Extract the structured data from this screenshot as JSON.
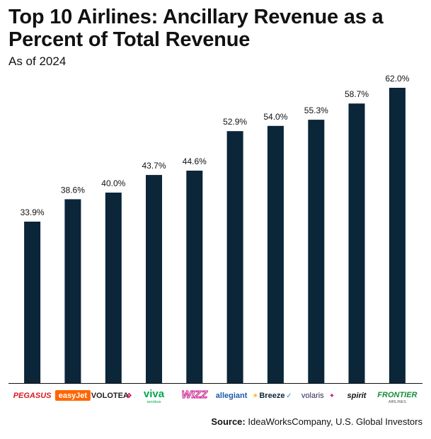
{
  "chart_data": {
    "type": "bar",
    "title": "Top 10 Airlines: Ancillary Revenue as a Percent of Total Revenue",
    "subtitle": "As of 2024",
    "categories": [
      "PEGASUS",
      "easyJet",
      "VOLOTEA",
      "viva aerobus",
      "WIZZ",
      "allegiant",
      "Breeze",
      "volaris",
      "spirit",
      "FRONTIER"
    ],
    "values": [
      33.9,
      38.6,
      40.0,
      43.7,
      44.6,
      52.9,
      54.0,
      55.3,
      58.7,
      62.0
    ],
    "value_labels": [
      "33.9%",
      "38.6%",
      "40.0%",
      "43.7%",
      "44.6%",
      "52.9%",
      "54.0%",
      "55.3%",
      "58.7%",
      "62.0%"
    ],
    "ylim": [
      0,
      62.0
    ],
    "grid": false,
    "legend": "none"
  },
  "colors": {
    "bar": "#0b2539",
    "axis": "#111111"
  },
  "logos": [
    {
      "text": "PEGASUS",
      "color": "#d71920",
      "style": "italic-bold"
    },
    {
      "text": "easyJet",
      "color": "#ffffff",
      "bg": "#ff6600",
      "style": "bold"
    },
    {
      "text": "VOLOTEA",
      "color": "#222222",
      "mark": "❖",
      "markColor": "#d6003a",
      "style": "bold"
    },
    {
      "text": "viva",
      "sub": "aerobus",
      "color": "#00a94f",
      "subColor": "#00a94f",
      "style": "bold"
    },
    {
      "text": "WIZZ",
      "color": "#c6007e",
      "style": "italic-outline"
    },
    {
      "text": "allegiant",
      "color": "#1c5aa7",
      "mark": "☀",
      "markColor": "#f7a800",
      "style": "bold"
    },
    {
      "text": "Breeze",
      "color": "#0b2539",
      "mark": "✓",
      "markColor": "#2f7dd1",
      "style": "bold"
    },
    {
      "text": "volaris",
      "color": "#2a2a5a",
      "mark": "✦",
      "markColor": "#c0267d",
      "style": "normal"
    },
    {
      "text": "spirit",
      "color": "#111111",
      "style": "italic-bold"
    },
    {
      "text": "FRONTIER",
      "sub": "AIRLINES",
      "color": "#1a8a3c",
      "subColor": "#555555",
      "style": "italic-bold"
    }
  ],
  "source": {
    "label": "Source:",
    "text": "IdeaWorksCompany, U.S. Global Investors"
  }
}
